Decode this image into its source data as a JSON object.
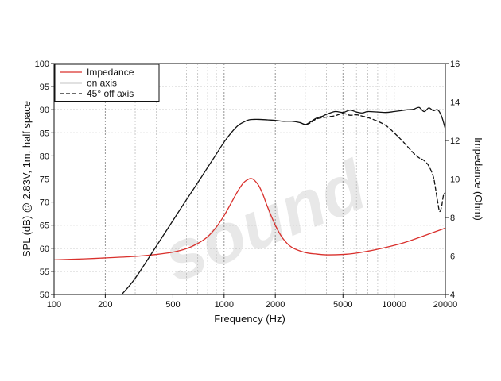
{
  "chart_data": {
    "type": "line",
    "title": "",
    "xlabel": "Frequency (Hz)",
    "ylabel": "SPL (dB) @ 2.83V, 1m, half space",
    "y2label": "Impedance (Ohm)",
    "xscale": "log",
    "xlim": [
      100,
      20000
    ],
    "ylim": [
      50,
      100
    ],
    "y2lim": [
      4,
      16
    ],
    "x_ticks": [
      "100",
      "200",
      "500",
      "1000",
      "2000",
      "5000",
      "10000",
      "20000"
    ],
    "y_ticks": [
      "50",
      "55",
      "60",
      "65",
      "70",
      "75",
      "80",
      "85",
      "90",
      "95",
      "100"
    ],
    "y2_ticks": [
      "4",
      "6",
      "8",
      "10",
      "12",
      "14",
      "16"
    ],
    "grid": true,
    "legend_placement": "top-left",
    "watermark": "sound",
    "series": [
      {
        "name": "Impedance",
        "axis": "right",
        "color": "#d9302c",
        "style": "solid",
        "x": [
          100,
          150,
          200,
          300,
          400,
          500,
          600,
          700,
          800,
          900,
          1000,
          1100,
          1200,
          1300,
          1400,
          1450,
          1500,
          1600,
          1700,
          1800,
          2000,
          2200,
          2500,
          3000,
          3500,
          4000,
          5000,
          6000,
          7000,
          8000,
          10000,
          12000,
          15000,
          20000
        ],
        "values": [
          5.8,
          5.85,
          5.9,
          5.98,
          6.08,
          6.2,
          6.38,
          6.65,
          7.0,
          7.5,
          8.1,
          8.75,
          9.35,
          9.8,
          10.0,
          10.02,
          9.95,
          9.65,
          9.15,
          8.55,
          7.6,
          6.95,
          6.45,
          6.18,
          6.1,
          6.06,
          6.08,
          6.15,
          6.25,
          6.35,
          6.55,
          6.75,
          7.05,
          7.45
        ]
      },
      {
        "name": "on axis",
        "axis": "left",
        "color": "#111111",
        "style": "solid",
        "x": [
          250,
          300,
          400,
          500,
          600,
          700,
          800,
          900,
          1000,
          1100,
          1200,
          1300,
          1400,
          1500,
          1600,
          1800,
          2000,
          2200,
          2500,
          2800,
          3000,
          3200,
          3500,
          3800,
          4000,
          4500,
          5000,
          5500,
          6000,
          6500,
          7000,
          8000,
          9000,
          10000,
          11000,
          12000,
          13000,
          14000,
          15000,
          16000,
          17000,
          18000,
          19000,
          20000
        ],
        "values": [
          50,
          53.5,
          60.5,
          66.0,
          70.5,
          74.2,
          77.5,
          80.4,
          83.0,
          85.0,
          86.5,
          87.3,
          87.8,
          87.9,
          87.9,
          87.8,
          87.7,
          87.5,
          87.5,
          87.2,
          86.8,
          87.3,
          88.2,
          88.6,
          89.0,
          89.6,
          89.4,
          89.9,
          89.5,
          89.3,
          89.6,
          89.5,
          89.4,
          89.6,
          89.8,
          90.0,
          90.1,
          90.5,
          89.6,
          90.4,
          89.8,
          90.0,
          88.6,
          85.8
        ]
      },
      {
        "name": "45° off axis",
        "axis": "left",
        "color": "#111111",
        "style": "dashed",
        "x": [
          2800,
          3000,
          3200,
          3500,
          4000,
          4500,
          5000,
          5500,
          6000,
          6500,
          7000,
          8000,
          9000,
          10000,
          11000,
          12000,
          13000,
          14000,
          15000,
          16000,
          17000,
          17500,
          18000,
          18500,
          19000,
          19500,
          20000
        ],
        "values": [
          87.2,
          86.8,
          87.1,
          88.0,
          88.4,
          88.7,
          89.2,
          88.8,
          88.9,
          88.6,
          88.3,
          87.5,
          86.5,
          85.0,
          83.5,
          82.0,
          80.6,
          79.6,
          79.0,
          77.8,
          75.5,
          73.0,
          70.2,
          68.0,
          69.0,
          71.5,
          72.0
        ]
      }
    ]
  }
}
